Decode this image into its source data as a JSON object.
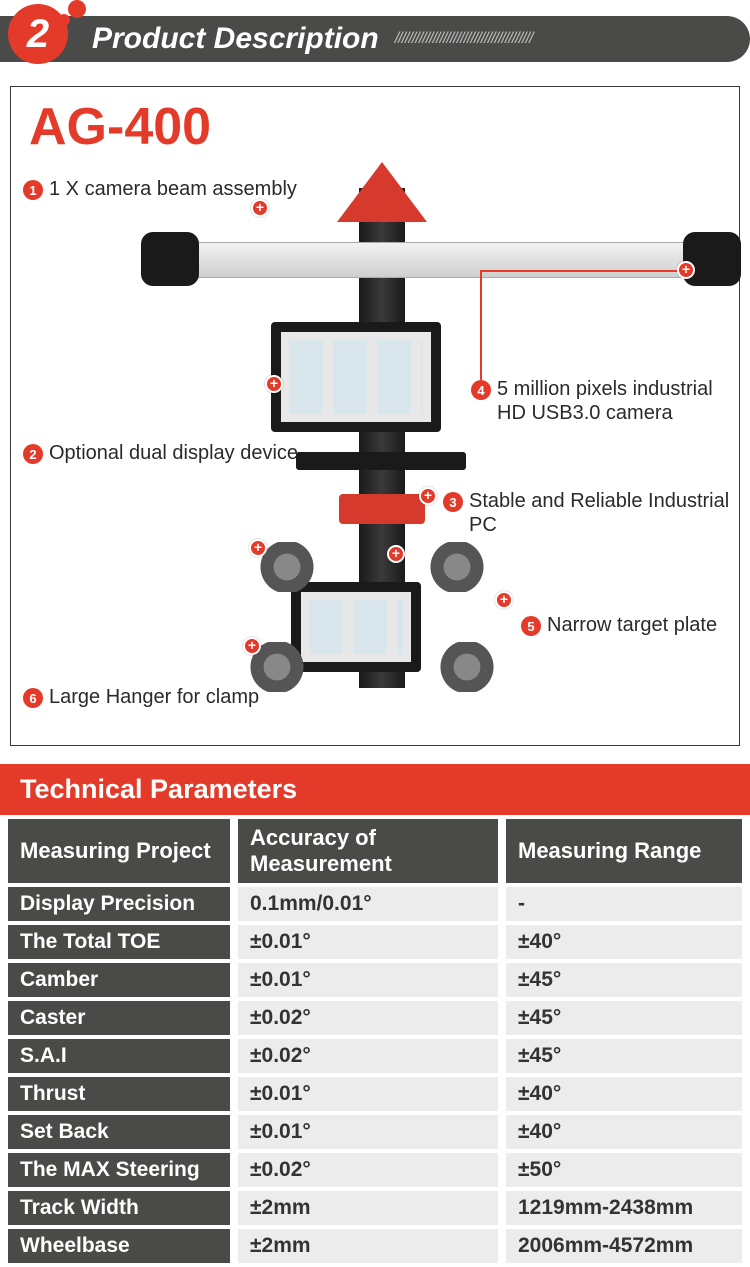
{
  "banner": {
    "number": "2",
    "title": "Product Description",
    "slashes": "////////////////////////////////////////"
  },
  "model": "AG-400",
  "callouts": {
    "c1": "1 X camera beam assembly",
    "c2": "Optional dual display device",
    "c3": "Stable and Reliable Industrial PC",
    "c4": "5 million pixels industrial HD USB3.0 camera",
    "c5": "Narrow target plate",
    "c6": "Large Hanger for clamp"
  },
  "table": {
    "title": "Technical Parameters",
    "col1": "Measuring Project",
    "col2": "Accuracy of Measurement",
    "col3": "Measuring Range",
    "rows": [
      {
        "p": "Display Precision",
        "a": "0.1mm/0.01°",
        "r": "-"
      },
      {
        "p": "The Total TOE",
        "a": "±0.01°",
        "r": "±40°"
      },
      {
        "p": "Camber",
        "a": "±0.01°",
        "r": "±45°"
      },
      {
        "p": "Caster",
        "a": "±0.02°",
        "r": "±45°"
      },
      {
        "p": "S.A.I",
        "a": "±0.02°",
        "r": "±45°"
      },
      {
        "p": "Thrust",
        "a": "±0.01°",
        "r": "±40°"
      },
      {
        "p": "Set Back",
        "a": "±0.01°",
        "r": "±40°"
      },
      {
        "p": "The MAX Steering",
        "a": "±0.02°",
        "r": "±50°"
      },
      {
        "p": "Track Width",
        "a": "±2mm",
        "r": "1219mm-2438mm"
      },
      {
        "p": "Wheelbase",
        "a": "±2mm",
        "r": "2006mm-4572mm"
      }
    ]
  },
  "colors": {
    "accent": "#e43a2a",
    "dark": "#4a4a48",
    "row": "#ececec"
  }
}
